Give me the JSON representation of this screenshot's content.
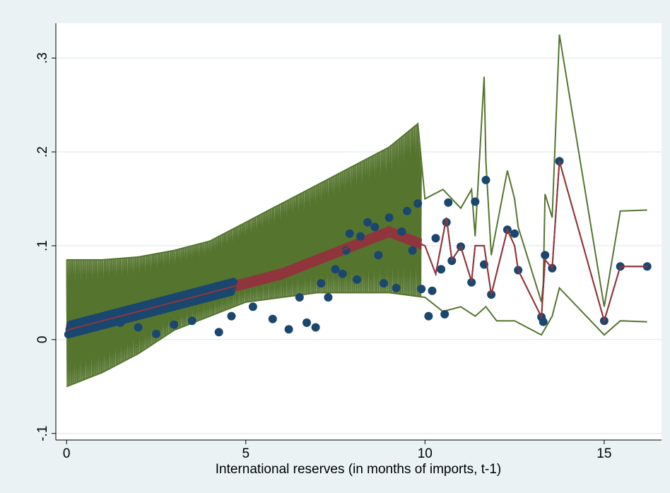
{
  "chart_data": {
    "type": "scatter",
    "title": "",
    "xlabel": "International reserves (in months of imports, t-1)",
    "ylabel": "",
    "xlim": [
      -0.3,
      16.6
    ],
    "ylim": [
      -0.107,
      0.337
    ],
    "xticks": [
      0,
      5,
      10,
      15
    ],
    "yticks": [
      -0.1,
      0,
      0.1,
      0.2,
      0.3
    ],
    "xtick_labels": [
      "0",
      "5",
      "10",
      "15"
    ],
    "ytick_labels": [
      "-.1",
      "0",
      ".1",
      ".2",
      ".3"
    ],
    "grid": "horizontal",
    "legend": "none",
    "colors": {
      "background": "#eaf2f3",
      "plot_bg": "#ffffff",
      "grid": "#dce8ee",
      "points": "#1a476f",
      "fit_line": "#90353b",
      "ci_lines": "#55752f"
    },
    "series": [
      {
        "type": "scatter",
        "x": [
          0.1,
          0.3,
          0.6,
          1.0,
          1.5,
          2.0,
          2.5,
          3.0,
          3.5,
          4.25,
          4.6,
          5.2,
          5.75,
          6.2,
          6.5,
          6.7,
          6.95,
          7.1,
          7.3,
          7.5,
          7.7,
          7.8,
          7.9,
          8.1,
          8.2,
          8.4,
          8.6,
          8.7,
          8.85,
          9.0,
          9.2,
          9.35,
          9.5,
          9.65,
          9.8,
          9.9,
          10.1,
          10.2,
          10.3,
          10.45,
          10.55,
          10.6,
          10.65,
          10.75,
          11.0,
          11.3,
          11.4,
          11.65,
          11.7,
          11.85,
          12.3,
          12.5,
          12.6,
          13.25,
          13.3,
          13.35,
          13.55,
          13.75,
          15.0,
          15.45,
          16.2
        ],
        "y": [
          0.01,
          0.012,
          0.014,
          0.016,
          0.018,
          0.013,
          0.006,
          0.016,
          0.02,
          0.008,
          0.025,
          0.035,
          0.022,
          0.011,
          0.045,
          0.018,
          0.013,
          0.06,
          0.045,
          0.075,
          0.07,
          0.095,
          0.113,
          0.064,
          0.11,
          0.125,
          0.12,
          0.09,
          0.06,
          0.13,
          0.055,
          0.115,
          0.137,
          0.095,
          0.145,
          0.054,
          0.025,
          0.052,
          0.108,
          0.075,
          0.027,
          0.125,
          0.146,
          0.084,
          0.099,
          0.061,
          0.147,
          0.08,
          0.17,
          0.048,
          0.117,
          0.113,
          0.074,
          0.024,
          0.019,
          0.09,
          0.076,
          0.19,
          0.02,
          0.078,
          0.078
        ]
      },
      {
        "type": "line",
        "x": [
          0.0,
          1.0,
          2.0,
          3.0,
          4.0,
          5.0,
          6.0,
          7.0,
          8.0,
          9.0,
          10.0,
          10.3,
          10.6,
          10.75,
          11.0,
          11.3,
          11.4,
          11.65,
          11.85,
          12.3,
          12.5,
          12.6,
          13.25,
          13.35,
          13.55,
          13.75,
          15.0,
          15.45,
          16.2
        ],
        "y": [
          0.01,
          0.02,
          0.03,
          0.04,
          0.05,
          0.06,
          0.07,
          0.085,
          0.1,
          0.115,
          0.1,
          0.07,
          0.13,
          0.085,
          0.099,
          0.062,
          0.1,
          0.1,
          0.048,
          0.117,
          0.1,
          0.074,
          0.024,
          0.085,
          0.076,
          0.19,
          0.02,
          0.078,
          0.078
        ]
      },
      {
        "type": "line",
        "x": [
          0.0,
          1.0,
          2.0,
          3.0,
          4.0,
          5.0,
          6.0,
          7.0,
          8.0,
          9.0,
          9.8,
          10.0,
          10.5,
          11.0,
          11.3,
          11.4,
          11.65,
          11.7,
          11.85,
          12.3,
          12.5,
          12.6,
          13.25,
          13.3,
          13.35,
          13.55,
          13.75,
          15.0,
          15.45,
          16.2
        ],
        "y": [
          0.085,
          0.085,
          0.088,
          0.095,
          0.105,
          0.125,
          0.145,
          0.165,
          0.185,
          0.205,
          0.23,
          0.15,
          0.16,
          0.14,
          0.16,
          0.11,
          0.28,
          0.19,
          0.09,
          0.18,
          0.15,
          0.12,
          0.04,
          0.06,
          0.155,
          0.13,
          0.325,
          0.035,
          0.137,
          0.138
        ]
      },
      {
        "type": "line",
        "x": [
          0.0,
          1.0,
          2.0,
          3.0,
          4.0,
          5.0,
          6.0,
          7.0,
          8.0,
          9.0,
          10.0,
          10.5,
          11.0,
          11.4,
          11.7,
          12.0,
          12.5,
          13.25,
          13.55,
          13.75,
          15.0,
          15.45,
          16.2
        ],
        "y": [
          -0.05,
          -0.035,
          -0.015,
          0.01,
          0.025,
          0.04,
          0.045,
          0.05,
          0.05,
          0.05,
          0.045,
          0.03,
          0.035,
          0.025,
          0.035,
          0.02,
          0.02,
          0.005,
          0.025,
          0.055,
          0.005,
          0.02,
          0.019
        ]
      }
    ]
  }
}
